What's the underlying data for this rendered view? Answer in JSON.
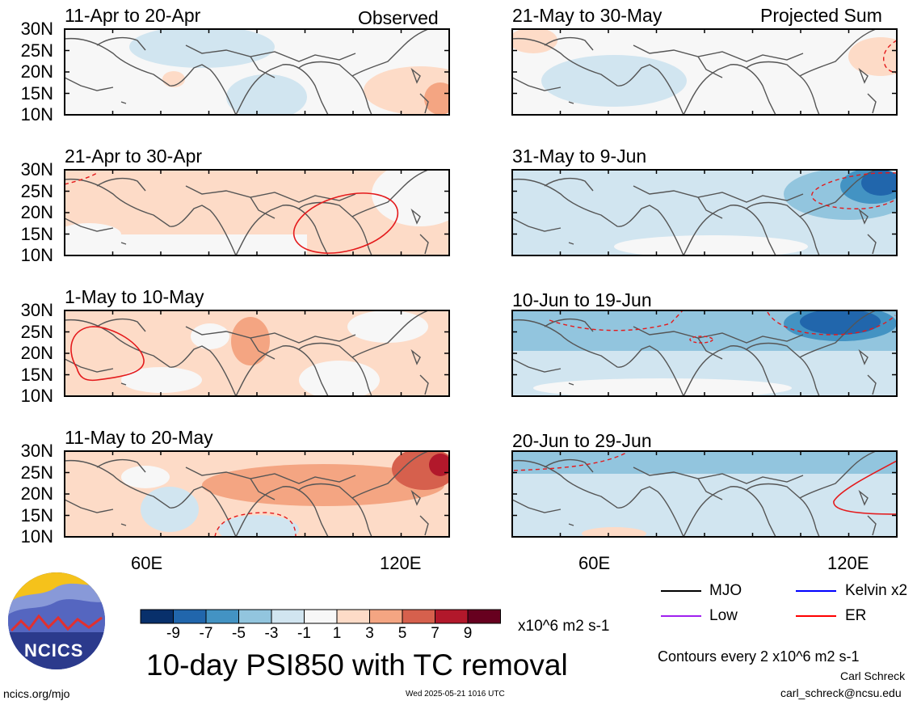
{
  "header": {
    "left_corner": "Observed",
    "right_corner": "Projected Sum"
  },
  "axes": {
    "lat_ticks": [
      "30N",
      "25N",
      "20N",
      "15N",
      "10N"
    ],
    "lon_ticks": [
      "60E",
      "120E"
    ]
  },
  "colorbar": {
    "colors": [
      "#08306b",
      "#2166ac",
      "#4393c3",
      "#92c5de",
      "#d1e5f0",
      "#f7f7f7",
      "#fddbc7",
      "#f4a582",
      "#d6604d",
      "#b2182b",
      "#67001f"
    ],
    "tick_labels": [
      "-9",
      "-7",
      "-5",
      "-3",
      "-1",
      "1",
      "3",
      "5",
      "7",
      "9"
    ],
    "units": "x10^6 m2 s-1"
  },
  "title": "10-day PSI850 with TC removal",
  "legend": {
    "items": [
      {
        "label": "MJO",
        "color": "#000000"
      },
      {
        "label": "Kelvin x2",
        "color": "#0000ff"
      },
      {
        "label": "Low",
        "color": "#a020f0"
      },
      {
        "label": "ER",
        "color": "#ff0000"
      }
    ],
    "contour_note": "Contours every 2 x10^6 m2 s-1"
  },
  "footer": {
    "url": "ncics.org/mjo",
    "timestamp": "Wed 2025-05-21 1016 UTC",
    "author": "Carl Schreck",
    "email": "carl_schreck@ncsu.edu",
    "logo_text": "NCICS"
  },
  "chart_data": [
    {
      "type": "heatmap",
      "title": "11-Apr to 20-Apr",
      "column": "Observed",
      "dominant_anomaly": "weak, near 0 with small ±1 areas",
      "ylim": [
        "10N",
        "30N"
      ]
    },
    {
      "type": "heatmap",
      "title": "21-Apr to 30-Apr",
      "column": "Observed",
      "dominant_anomaly": "positive 1 to 3",
      "er_contour": "closed solid positive near 105E-120E, 15N-22N",
      "ylim": [
        "10N",
        "30N"
      ]
    },
    {
      "type": "heatmap",
      "title": "1-May to 10-May",
      "column": "Observed",
      "dominant_anomaly": "positive 1 to 5",
      "er_contour": "closed solid positive near 45E-55E, 18N-23N",
      "ylim": [
        "10N",
        "30N"
      ]
    },
    {
      "type": "heatmap",
      "title": "11-May to 20-May",
      "column": "Observed",
      "dominant_anomaly": "positive 1 to 7",
      "er_contour": "dashed negative near 80E-90E, 12N",
      "ylim": [
        "10N",
        "30N"
      ]
    },
    {
      "type": "heatmap",
      "title": "21-May to 30-May",
      "column": "Projected Sum",
      "dominant_anomaly": "weak negative -1",
      "ylim": [
        "10N",
        "30N"
      ]
    },
    {
      "type": "heatmap",
      "title": "31-May to 9-Jun",
      "column": "Projected Sum",
      "dominant_anomaly": "negative -1 to -7",
      "er_contour": "dashed negative near 115E-130E, 20N-28N",
      "ylim": [
        "10N",
        "30N"
      ]
    },
    {
      "type": "heatmap",
      "title": "10-Jun to 19-Jun",
      "column": "Projected Sum",
      "dominant_anomaly": "negative -1 to -7",
      "er_contour": "dashed negative 25N-30N",
      "ylim": [
        "10N",
        "30N"
      ]
    },
    {
      "type": "heatmap",
      "title": "20-Jun to 29-Jun",
      "column": "Projected Sum",
      "dominant_anomaly": "negative -1 to -5",
      "er_contour": "solid positive near 122E-130E, 15N-28N",
      "ylim": [
        "10N",
        "30N"
      ]
    }
  ]
}
